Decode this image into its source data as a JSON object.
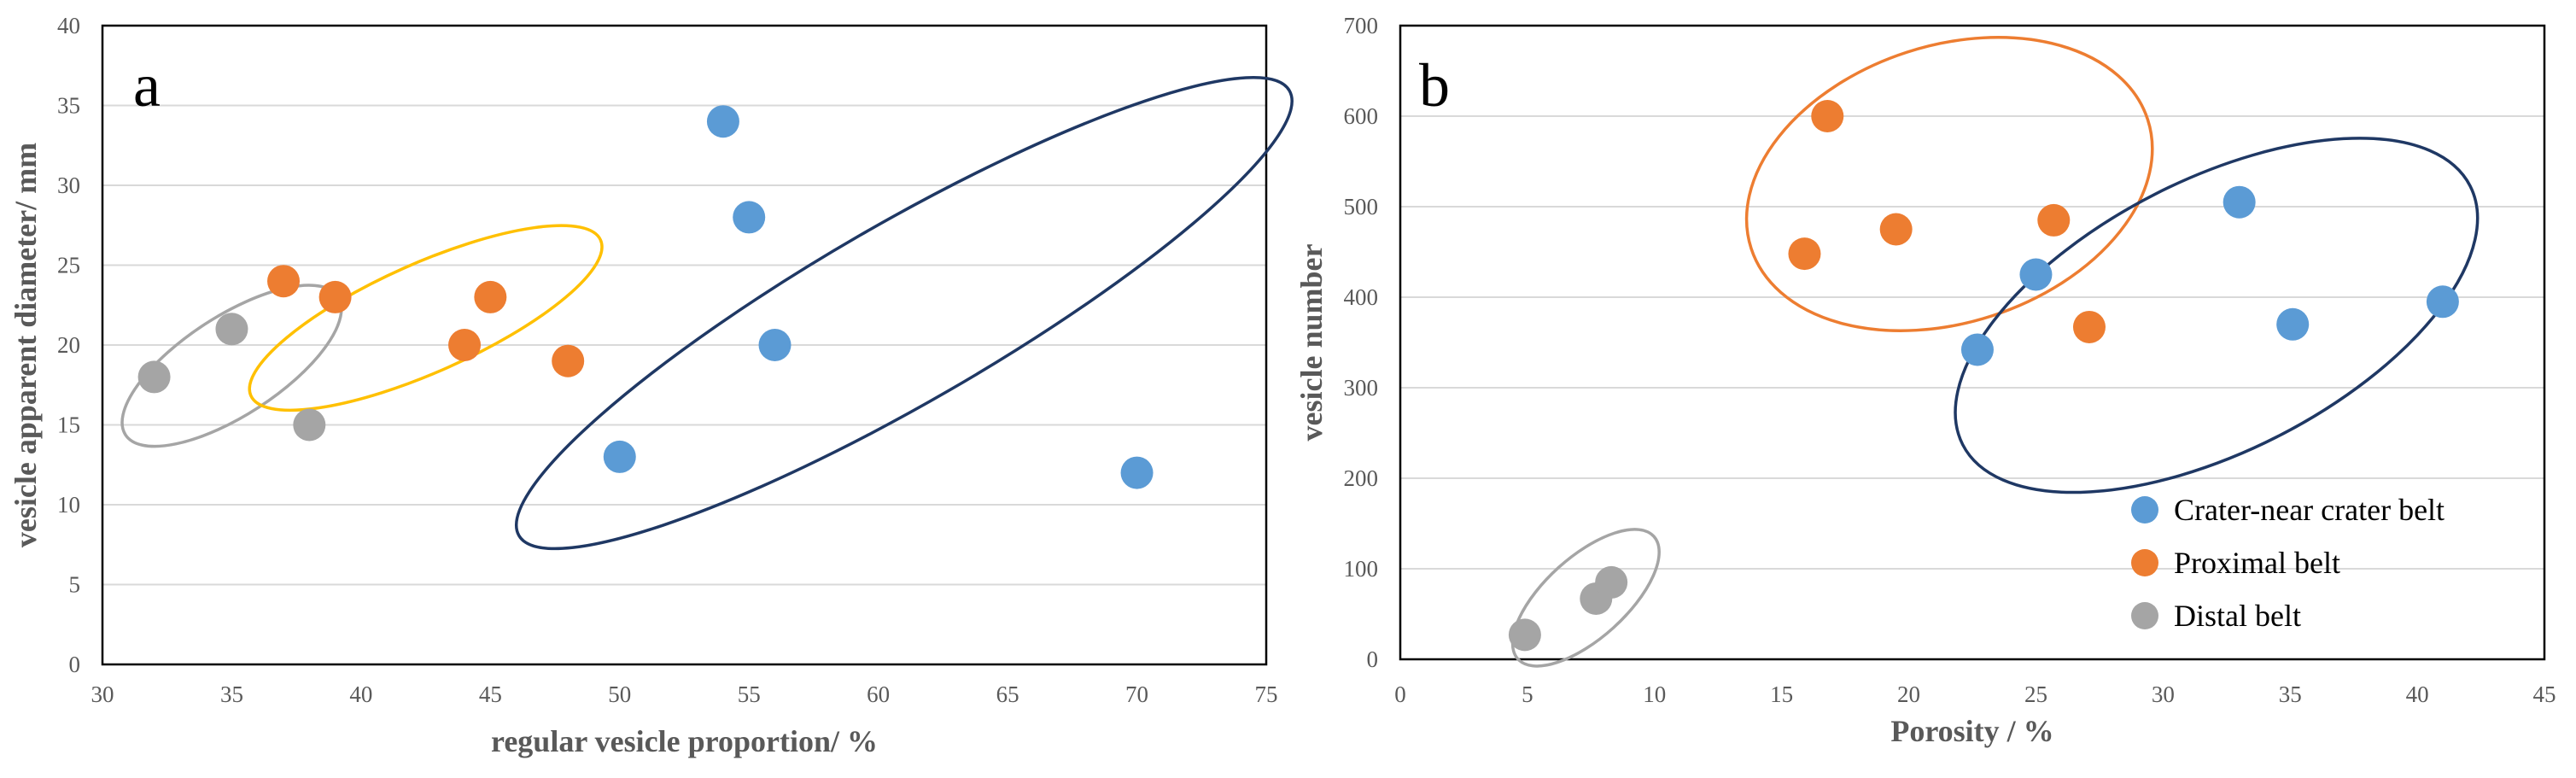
{
  "figure_colors": {
    "crater": "#5B9BD5",
    "proximal": "#ED7D31",
    "distal": "#A5A5A5",
    "grid": "#D9D9D9",
    "ellipse_crater": "#1F3864",
    "ellipse_proximal_a": "#FFC000",
    "ellipse_proximal_b": "#ED7D31",
    "ellipse_distal": "#A5A5A5"
  },
  "legend": {
    "items": [
      {
        "label": "Crater-near crater belt",
        "color": "#5B9BD5"
      },
      {
        "label": "Proximal belt",
        "color": "#ED7D31"
      },
      {
        "label": "Distal belt",
        "color": "#A5A5A5"
      }
    ]
  },
  "chart_data": [
    {
      "type": "scatter",
      "panel_label": "a",
      "title": "",
      "xlabel": "regular vesicle proportion/ %",
      "ylabel": "vesicle apparent diameter/ mm",
      "xlim": [
        30,
        75
      ],
      "ylim": [
        0,
        40
      ],
      "xticks": [
        30,
        35,
        40,
        45,
        50,
        55,
        60,
        65,
        70,
        75
      ],
      "yticks": [
        0,
        5,
        10,
        15,
        20,
        25,
        30,
        35,
        40
      ],
      "grid": "horizontal",
      "series": [
        {
          "name": "Crater-near crater belt",
          "color": "#5B9BD5",
          "points": [
            [
              54,
              34
            ],
            [
              55,
              28
            ],
            [
              56,
              20
            ],
            [
              50,
              13
            ],
            [
              70,
              12
            ]
          ]
        },
        {
          "name": "Proximal belt",
          "color": "#ED7D31",
          "points": [
            [
              37,
              24
            ],
            [
              39,
              23
            ],
            [
              45,
              23
            ],
            [
              44,
              20
            ],
            [
              48,
              19
            ]
          ]
        },
        {
          "name": "Distal belt",
          "color": "#A5A5A5",
          "points": [
            [
              35,
              21
            ],
            [
              32,
              18
            ],
            [
              38,
              15
            ]
          ]
        }
      ],
      "groupings": [
        {
          "series": "Distal belt",
          "color": "#A5A5A5",
          "cx": 35,
          "cy": 18.7,
          "rx": 4.9,
          "ry": 3.1,
          "angle": -33
        },
        {
          "series": "Proximal belt",
          "color": "#FFC000",
          "cx": 42.5,
          "cy": 21.7,
          "rx": 7.4,
          "ry": 3.4,
          "angle": -24
        },
        {
          "series": "Crater-near crater belt",
          "color": "#1F3864",
          "cx": 61,
          "cy": 22,
          "rx": 17.2,
          "ry": 5.6,
          "angle": -30
        }
      ]
    },
    {
      "type": "scatter",
      "panel_label": "b",
      "title": "",
      "xlabel": "Porosity / %",
      "ylabel": "vesicle number",
      "xlim": [
        0,
        45
      ],
      "ylim": [
        0,
        700
      ],
      "xticks": [
        0,
        5,
        10,
        15,
        20,
        25,
        30,
        35,
        40,
        45
      ],
      "yticks": [
        0,
        100,
        200,
        300,
        400,
        500,
        600,
        700
      ],
      "grid": "horizontal",
      "legend_position": "bottom-right",
      "series": [
        {
          "name": "Crater-near crater belt",
          "color": "#5B9BD5",
          "points": [
            [
              22.7,
              342
            ],
            [
              25,
              425
            ],
            [
              33,
              505
            ],
            [
              35.1,
              370
            ],
            [
              41,
              395
            ]
          ]
        },
        {
          "name": "Proximal belt",
          "color": "#ED7D31",
          "points": [
            [
              16.8,
              600
            ],
            [
              15.9,
              448
            ],
            [
              19.5,
              475
            ],
            [
              25.7,
              485
            ],
            [
              27.1,
              367
            ]
          ]
        },
        {
          "name": "Distal belt",
          "color": "#A5A5A5",
          "points": [
            [
              4.9,
              27
            ],
            [
              7.7,
              67
            ],
            [
              8.3,
              85
            ]
          ]
        }
      ],
      "groupings": [
        {
          "series": "Proximal belt",
          "color": "#ED7D31",
          "cx": 21.6,
          "cy": 525,
          "rx": 8.2,
          "ry": 153,
          "angle": -18
        },
        {
          "series": "Crater-near crater belt",
          "color": "#1F3864",
          "cx": 32.1,
          "cy": 380,
          "rx": 11.2,
          "ry": 150,
          "angle": -27
        },
        {
          "series": "Distal belt",
          "color": "#A5A5A5",
          "cx": 7.3,
          "cy": 68,
          "rx": 3.6,
          "ry": 45,
          "angle": -42
        }
      ]
    }
  ]
}
